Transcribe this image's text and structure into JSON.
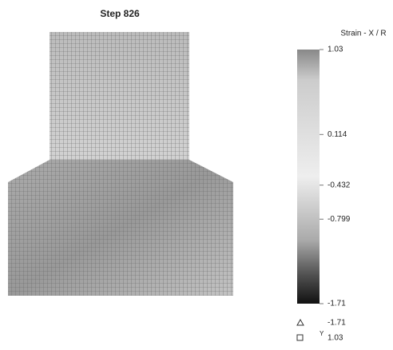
{
  "title": "Step 826",
  "colorbar": {
    "title": "Strain - X / R",
    "lim": [
      -1.71,
      1.03
    ],
    "ticks": [
      1.03,
      0.114,
      -0.432,
      -0.799,
      -1.71
    ]
  },
  "extremes": {
    "min": -1.71,
    "max_axis": "Y",
    "max": 1.03
  }
}
